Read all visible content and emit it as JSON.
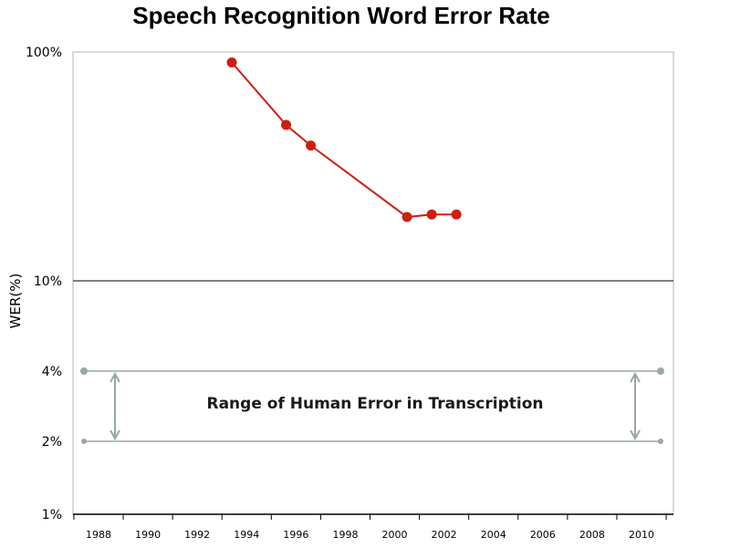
{
  "chart_data": {
    "type": "line",
    "title": "Speech Recognition Word Error Rate",
    "xlabel": "",
    "ylabel": "WER(%)",
    "y_scale": "log",
    "ylim": [
      1,
      100
    ],
    "xlim": [
      1987,
      2011
    ],
    "grid": false,
    "y_ticks": [
      {
        "value": 100,
        "label": "100%"
      },
      {
        "value": 10,
        "label": "10%"
      },
      {
        "value": 4,
        "label": "4%"
      },
      {
        "value": 2,
        "label": "2%"
      },
      {
        "value": 1,
        "label": "1%"
      }
    ],
    "x_ticks": [
      {
        "value": 1988,
        "label": "1988"
      },
      {
        "value": 1990,
        "label": "1990"
      },
      {
        "value": 1992,
        "label": "1992"
      },
      {
        "value": 1994,
        "label": "1994"
      },
      {
        "value": 1996,
        "label": "1996"
      },
      {
        "value": 1998,
        "label": "1998"
      },
      {
        "value": 2000,
        "label": "2000"
      },
      {
        "value": 2002,
        "label": "2002"
      },
      {
        "value": 2004,
        "label": "2004"
      },
      {
        "value": 2006,
        "label": "2006"
      },
      {
        "value": 2008,
        "label": "2008"
      },
      {
        "value": 2010,
        "label": "2010"
      }
    ],
    "series": [
      {
        "color": "#cc1f10",
        "points": [
          {
            "x": 1993.4,
            "y": 90
          },
          {
            "x": 1995.6,
            "y": 48
          },
          {
            "x": 1996.6,
            "y": 39
          },
          {
            "x": 2000.5,
            "y": 19
          },
          {
            "x": 2001.5,
            "y": 19.5
          },
          {
            "x": 2002.5,
            "y": 19.5
          }
        ]
      }
    ],
    "human_range": {
      "label": "Range of Human Error in Transcription",
      "lower": 2,
      "upper": 4,
      "color": "#9aa7a8"
    }
  }
}
